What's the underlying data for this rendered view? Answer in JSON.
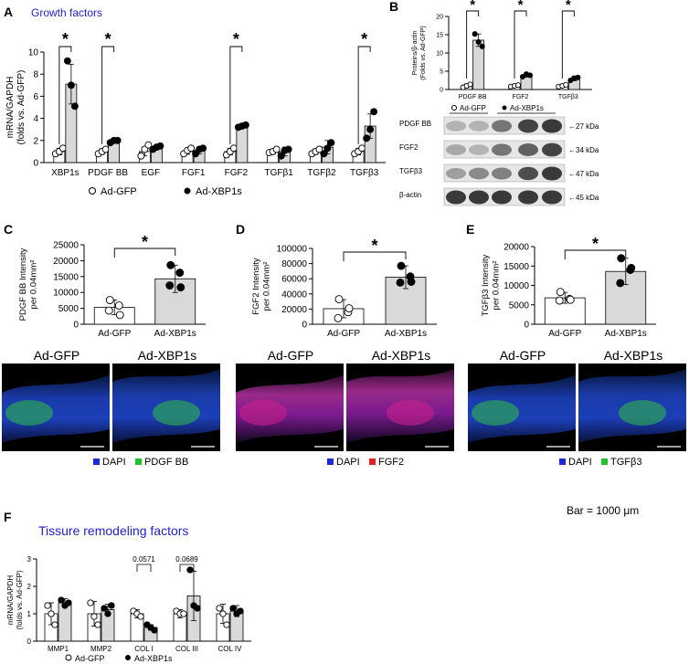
{
  "panel_letters": [
    "A",
    "B",
    "C",
    "D",
    "E",
    "F"
  ],
  "headings": {
    "growth": "Growth factors",
    "remodel": "Tissure remodeling factors"
  },
  "colors": {
    "heading": "#1f1fc8",
    "bar_gfp": "#ffffff",
    "bar_xbp": "#d9d9d9",
    "dapi": "#1a2ad4",
    "pdgf": "#22c02a",
    "fgf2": "#e02020",
    "tgfb3": "#22c02a"
  },
  "legend": {
    "gfp": "Ad-GFP",
    "xbp": "Ad-XBP1s"
  },
  "star": "*",
  "scale_bar_text": "Bar = 1000 μm",
  "chart_data": [
    {
      "id": "A",
      "type": "bar",
      "ylabel_lines": [
        "mRNA/GAPDH",
        "(folds vs. Ad-GFP)"
      ],
      "ylim": [
        0,
        10
      ],
      "yticks": [
        0,
        2,
        4,
        6,
        8,
        10
      ],
      "categories": [
        "XBP1s",
        "PDGF BB",
        "EGF",
        "FGF1",
        "FGF2",
        "TGFβ1",
        "TGFβ2",
        "TGFβ3"
      ],
      "series": [
        {
          "name": "Ad-GFP",
          "values": [
            1.0,
            1.0,
            1.0,
            1.0,
            1.0,
            1.0,
            1.0,
            1.0
          ],
          "err": [
            0.3,
            0.25,
            0.4,
            0.25,
            0.3,
            0.2,
            0.25,
            0.3
          ],
          "points": [
            [
              0.8,
              1.0,
              1.3
            ],
            [
              0.8,
              1.0,
              1.2
            ],
            [
              0.6,
              1.2,
              1.6
            ],
            [
              0.8,
              1.1,
              1.3
            ],
            [
              0.7,
              1.0,
              1.3
            ],
            [
              0.9,
              1.0,
              1.2
            ],
            [
              0.8,
              1.0,
              1.2
            ],
            [
              0.8,
              1.0,
              1.3
            ]
          ]
        },
        {
          "name": "Ad-XBP1s",
          "values": [
            7.1,
            1.9,
            1.35,
            1.1,
            3.3,
            1.0,
            1.4,
            3.3
          ],
          "err": [
            1.8,
            0.15,
            0.2,
            0.3,
            0.15,
            0.4,
            0.6,
            1.1
          ],
          "points": [
            [
              9.2,
              7.0,
              5.1
            ],
            [
              1.8,
              2.0,
              2.0
            ],
            [
              1.2,
              1.4,
              1.5
            ],
            [
              0.8,
              1.2,
              1.3
            ],
            [
              3.2,
              3.3,
              3.4
            ],
            [
              0.6,
              1.1,
              1.2
            ],
            [
              0.8,
              1.3,
              1.8
            ],
            [
              2.2,
              3.0,
              4.6
            ]
          ]
        }
      ],
      "significant": [
        "XBP1s",
        "PDGF BB",
        "FGF2",
        "TGFβ3"
      ]
    },
    {
      "id": "B",
      "type": "bar",
      "ylabel_lines": [
        "Proteins/β-actin",
        "(Folds vs. Ad-GFP)"
      ],
      "ylim": [
        0,
        20
      ],
      "yticks": [
        0,
        5,
        10,
        15,
        20
      ],
      "categories": [
        "PDGF BB",
        "FGF2",
        "TGFβ3"
      ],
      "series": [
        {
          "name": "Ad-GFP",
          "values": [
            1.0,
            1.0,
            1.0
          ],
          "err": [
            0.5,
            0.3,
            0.4
          ],
          "points": [
            [
              0.6,
              1.0,
              1.4
            ],
            [
              0.8,
              1.0,
              1.2
            ],
            [
              0.8,
              1.0,
              1.3
            ]
          ]
        },
        {
          "name": "Ad-XBP1s",
          "values": [
            13.5,
            3.9,
            3.0
          ],
          "err": [
            1.7,
            0.5,
            0.6
          ],
          "points": [
            [
              15.2,
              13.0,
              11.8
            ],
            [
              3.5,
              4.2,
              3.9
            ],
            [
              2.5,
              3.1,
              3.3
            ]
          ]
        }
      ],
      "significant": [
        "PDGF BB",
        "FGF2",
        "TGFβ3"
      ]
    },
    {
      "id": "C",
      "type": "bar",
      "ylabel_lines": [
        "PDGF BB Intensity",
        "per 0.04mm²"
      ],
      "ylim": [
        0,
        25000
      ],
      "yticks": [
        0,
        5000,
        10000,
        15000,
        20000,
        25000
      ],
      "categories": [
        "Ad-GFP",
        "Ad-XBP1s"
      ],
      "values": [
        5300,
        14300
      ],
      "err": [
        2300,
        4300
      ],
      "points": [
        [
          7600,
          5900,
          4300,
          2900
        ],
        [
          18600,
          16200,
          12200,
          11600
        ]
      ]
    },
    {
      "id": "D",
      "type": "bar",
      "ylabel_lines": [
        "FGF2 Intensity",
        "per 0.04mm²"
      ],
      "ylim": [
        0,
        100000
      ],
      "yticks": [
        0,
        20000,
        40000,
        60000,
        80000,
        100000
      ],
      "categories": [
        "Ad-GFP",
        "Ad-XBP1s"
      ],
      "values": [
        20500,
        62000
      ],
      "err": [
        12000,
        15000
      ],
      "points": [
        [
          33000,
          16000,
          8000,
          21000
        ],
        [
          77000,
          63000,
          55000,
          56000
        ]
      ]
    },
    {
      "id": "E",
      "type": "bar",
      "ylabel_lines": [
        "TGFβ3 Intensity",
        "per 0.04mm²"
      ],
      "ylim": [
        0,
        20000
      ],
      "yticks": [
        0,
        5000,
        10000,
        15000,
        20000
      ],
      "categories": [
        "Ad-GFP",
        "Ad-XBP1s"
      ],
      "values": [
        6800,
        13600
      ],
      "err": [
        1400,
        3400
      ],
      "points": [
        [
          8300,
          6500,
          6100,
          6300
        ],
        [
          17000,
          14000,
          10600,
          14500
        ]
      ]
    },
    {
      "id": "F",
      "type": "bar",
      "ylabel_lines": [
        "mRNA/GAPDH",
        "(folds vs. Ad-GFP)"
      ],
      "ylim": [
        0,
        3
      ],
      "yticks": [
        0,
        1,
        2,
        3
      ],
      "categories": [
        "MMP1",
        "MMP2",
        "COL I",
        "COL III",
        "COL IV"
      ],
      "series": [
        {
          "name": "Ad-GFP",
          "values": [
            1.0,
            1.0,
            1.0,
            1.0,
            1.0
          ],
          "err": [
            0.4,
            0.45,
            0.15,
            0.15,
            0.35
          ],
          "points": [
            [
              1.3,
              1.0,
              0.6
            ],
            [
              1.4,
              0.9,
              0.6
            ],
            [
              1.1,
              1.0,
              0.9
            ],
            [
              1.1,
              1.0,
              1.0
            ],
            [
              1.2,
              1.0,
              0.6
            ]
          ]
        },
        {
          "name": "Ad-XBP1s",
          "values": [
            1.4,
            1.15,
            0.5,
            1.65,
            1.1
          ],
          "err": [
            0.15,
            0.2,
            0.1,
            0.9,
            0.2
          ],
          "points": [
            [
              1.5,
              1.3,
              1.4
            ],
            [
              1.2,
              1.0,
              1.3
            ],
            [
              0.6,
              0.5,
              0.4
            ],
            [
              2.6,
              1.3,
              1.2
            ],
            [
              1.2,
              1.0,
              1.1
            ]
          ]
        }
      ],
      "pvalues": [
        {
          "category": "COL I",
          "text": "0.0571"
        },
        {
          "category": "COL III",
          "text": "0.0689"
        }
      ]
    }
  ],
  "blot": {
    "legend": [
      "Ad-GFP",
      "Ad-XBP1s"
    ],
    "rows": [
      {
        "label": "PDGF BB",
        "kda": "27 kDa"
      },
      {
        "label": "FGF2",
        "kda": "34 kDa"
      },
      {
        "label": "TGFβ3",
        "kda": "47 kDa"
      },
      {
        "label": "β-actin",
        "kda": "45 kDa"
      }
    ]
  },
  "micrographs": {
    "labels": [
      "Ad-GFP",
      "Ad-XBP1s"
    ],
    "legends": [
      [
        "DAPI",
        "PDGF BB"
      ],
      [
        "DAPI",
        "FGF2"
      ],
      [
        "DAPI",
        "TGFβ3"
      ]
    ]
  }
}
